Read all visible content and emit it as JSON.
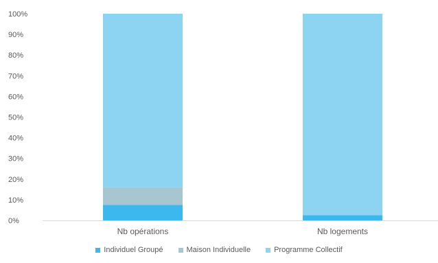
{
  "chart_data": {
    "type": "bar",
    "stacked": true,
    "percent_stacked": true,
    "categories": [
      "Nb opérations",
      "Nb logements"
    ],
    "series": [
      {
        "name": "Individuel Groupé",
        "values": [
          7.5,
          2.5
        ],
        "color": "#3DB8EE"
      },
      {
        "name": "Maison Individuelle",
        "values": [
          8.5,
          0.0
        ],
        "color": "#A8C6CF"
      },
      {
        "name": "Programme Collectif",
        "values": [
          84.0,
          97.5
        ],
        "color": "#8DD3F2"
      }
    ],
    "ylim": [
      0,
      100
    ],
    "yticks": [
      "0%",
      "10%",
      "20%",
      "30%",
      "40%",
      "50%",
      "60%",
      "70%",
      "80%",
      "90%",
      "100%"
    ],
    "grid": false,
    "legend_position": "bottom"
  }
}
